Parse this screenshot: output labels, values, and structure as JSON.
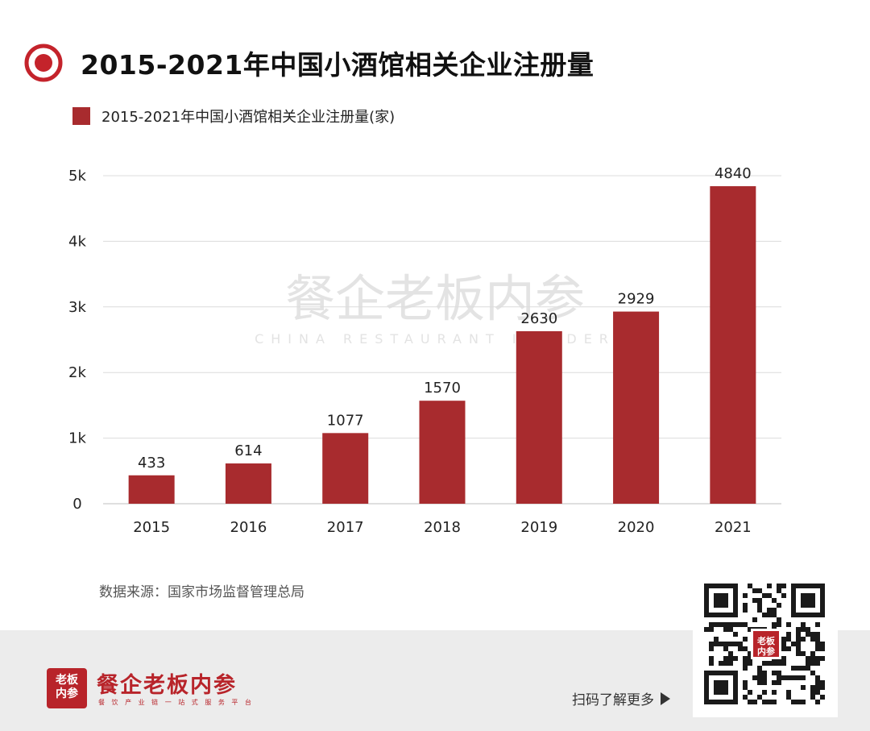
{
  "page_title": "2015-2021年中国小酒馆相关企业注册量",
  "legend": {
    "label": "2015-2021年中国小酒馆相关企业注册量(家)",
    "color": "#a82b2e"
  },
  "chart_data": {
    "type": "bar",
    "title": "2015-2021年中国小酒馆相关企业注册量",
    "categories": [
      "2015",
      "2016",
      "2017",
      "2018",
      "2019",
      "2020",
      "2021"
    ],
    "series": [
      {
        "name": "2015-2021年中国小酒馆相关企业注册量(家)",
        "values": [
          433,
          614,
          1077,
          1570,
          2630,
          2929,
          4840
        ]
      }
    ],
    "xlabel": "",
    "ylabel": "",
    "ylim": [
      0,
      5000
    ],
    "yticks": [
      0,
      1000,
      2000,
      3000,
      4000,
      5000
    ],
    "ytick_labels": [
      "0",
      "1k",
      "2k",
      "3k",
      "4k",
      "5k"
    ],
    "grid": true,
    "legend_position": "top-left",
    "bar_color": "#a82b2e"
  },
  "watermark": {
    "main": "餐企老板内参",
    "sub": "CHINA RESTAURANT INSIDER"
  },
  "source_note": "数据来源：国家市场监督管理总局",
  "footer": {
    "brand_name": "餐企老板内参",
    "brand_tagline": "餐 饮 产 业 链 一 站 式 服 务 平 台",
    "logo_text_line1": "老板",
    "logo_text_line2": "内参",
    "scan_label": "扫码了解更多",
    "qr_badge_line1": "老板",
    "qr_badge_line2": "内参"
  },
  "colors": {
    "accent": "#a82b2e",
    "brand": "#b8242a",
    "footer_bg": "#ececec"
  }
}
